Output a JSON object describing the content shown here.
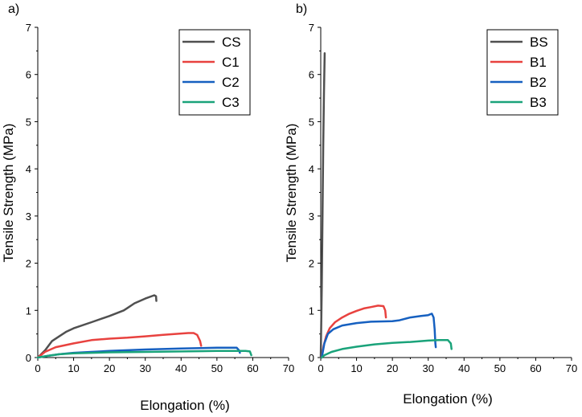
{
  "chart_data": [
    {
      "type": "line",
      "panel_label": "a)",
      "xlabel": "Elongation (%)",
      "ylabel": "Tensile Strength (MPa)",
      "xlim": [
        0,
        70
      ],
      "ylim": [
        0,
        7
      ],
      "xticks": [
        0,
        10,
        20,
        30,
        40,
        50,
        60,
        70
      ],
      "yticks": [
        0,
        1,
        2,
        3,
        4,
        5,
        6,
        7
      ],
      "grid": false,
      "legend_position": "top-right",
      "series": [
        {
          "name": "CS",
          "color": "#505050",
          "points": [
            [
              0,
              0
            ],
            [
              2,
              0.15
            ],
            [
              4,
              0.35
            ],
            [
              6,
              0.45
            ],
            [
              8,
              0.55
            ],
            [
              10,
              0.62
            ],
            [
              15,
              0.75
            ],
            [
              20,
              0.88
            ],
            [
              24,
              1.0
            ],
            [
              25,
              1.05
            ],
            [
              27,
              1.15
            ],
            [
              30,
              1.25
            ],
            [
              32.5,
              1.32
            ],
            [
              33,
              1.3
            ],
            [
              33.1,
              1.2
            ]
          ]
        },
        {
          "name": "C1",
          "color": "#e8423f",
          "points": [
            [
              0,
              0
            ],
            [
              2,
              0.12
            ],
            [
              5,
              0.22
            ],
            [
              10,
              0.3
            ],
            [
              15,
              0.37
            ],
            [
              20,
              0.4
            ],
            [
              25,
              0.42
            ],
            [
              30,
              0.45
            ],
            [
              35,
              0.48
            ],
            [
              40,
              0.51
            ],
            [
              42,
              0.52
            ],
            [
              43.5,
              0.52
            ],
            [
              44.5,
              0.48
            ],
            [
              45.3,
              0.35
            ],
            [
              45.6,
              0.25
            ]
          ]
        },
        {
          "name": "C2",
          "color": "#1660c0",
          "points": [
            [
              0,
              0
            ],
            [
              3,
              0.04
            ],
            [
              6,
              0.07
            ],
            [
              10,
              0.1
            ],
            [
              20,
              0.14
            ],
            [
              30,
              0.17
            ],
            [
              40,
              0.19
            ],
            [
              50,
              0.21
            ],
            [
              55.5,
              0.21
            ],
            [
              56.2,
              0.15
            ],
            [
              56.4,
              0.1
            ]
          ]
        },
        {
          "name": "C3",
          "color": "#1aa37a",
          "points": [
            [
              0,
              0
            ],
            [
              3,
              0.04
            ],
            [
              6,
              0.07
            ],
            [
              10,
              0.09
            ],
            [
              20,
              0.11
            ],
            [
              30,
              0.12
            ],
            [
              40,
              0.13
            ],
            [
              50,
              0.14
            ],
            [
              58,
              0.14
            ],
            [
              59.2,
              0.13
            ],
            [
              59.6,
              0.05
            ]
          ]
        }
      ]
    },
    {
      "type": "line",
      "panel_label": "b)",
      "xlabel": "Elongation (%)",
      "ylabel": "Tensile Strength (MPa)",
      "xlim": [
        0,
        70
      ],
      "ylim": [
        0,
        7
      ],
      "xticks": [
        0,
        10,
        20,
        30,
        40,
        50,
        60,
        70
      ],
      "yticks": [
        0,
        1,
        2,
        3,
        4,
        5,
        6,
        7
      ],
      "grid": false,
      "legend_position": "top-right",
      "series": [
        {
          "name": "BS",
          "color": "#505050",
          "points": [
            [
              0,
              0
            ],
            [
              0.3,
              1.5
            ],
            [
              0.5,
              3.0
            ],
            [
              0.7,
              4.5
            ],
            [
              0.9,
              5.6
            ],
            [
              1.1,
              6.45
            ]
          ]
        },
        {
          "name": "B1",
          "color": "#e8423f",
          "points": [
            [
              0.3,
              0
            ],
            [
              0.8,
              0.25
            ],
            [
              1.5,
              0.45
            ],
            [
              2.5,
              0.62
            ],
            [
              4,
              0.75
            ],
            [
              6,
              0.85
            ],
            [
              8,
              0.93
            ],
            [
              10,
              0.99
            ],
            [
              12,
              1.04
            ],
            [
              14,
              1.07
            ],
            [
              16,
              1.1
            ],
            [
              17.5,
              1.09
            ],
            [
              18,
              1.0
            ],
            [
              18.2,
              0.85
            ]
          ]
        },
        {
          "name": "B2",
          "color": "#1660c0",
          "points": [
            [
              0.3,
              0
            ],
            [
              1,
              0.3
            ],
            [
              2,
              0.5
            ],
            [
              3.5,
              0.6
            ],
            [
              6,
              0.68
            ],
            [
              10,
              0.73
            ],
            [
              14,
              0.76
            ],
            [
              20,
              0.77
            ],
            [
              22,
              0.79
            ],
            [
              25,
              0.85
            ],
            [
              28,
              0.88
            ],
            [
              30,
              0.9
            ],
            [
              31,
              0.93
            ],
            [
              31.5,
              0.85
            ],
            [
              31.8,
              0.6
            ],
            [
              32,
              0.3
            ],
            [
              32.1,
              0.22
            ]
          ]
        },
        {
          "name": "B3",
          "color": "#1aa37a",
          "points": [
            [
              0.3,
              0
            ],
            [
              1,
              0.05
            ],
            [
              3,
              0.12
            ],
            [
              6,
              0.18
            ],
            [
              10,
              0.23
            ],
            [
              15,
              0.28
            ],
            [
              20,
              0.31
            ],
            [
              25,
              0.33
            ],
            [
              30,
              0.36
            ],
            [
              33,
              0.37
            ],
            [
              35.5,
              0.37
            ],
            [
              36.3,
              0.3
            ],
            [
              36.5,
              0.18
            ]
          ]
        }
      ]
    }
  ]
}
